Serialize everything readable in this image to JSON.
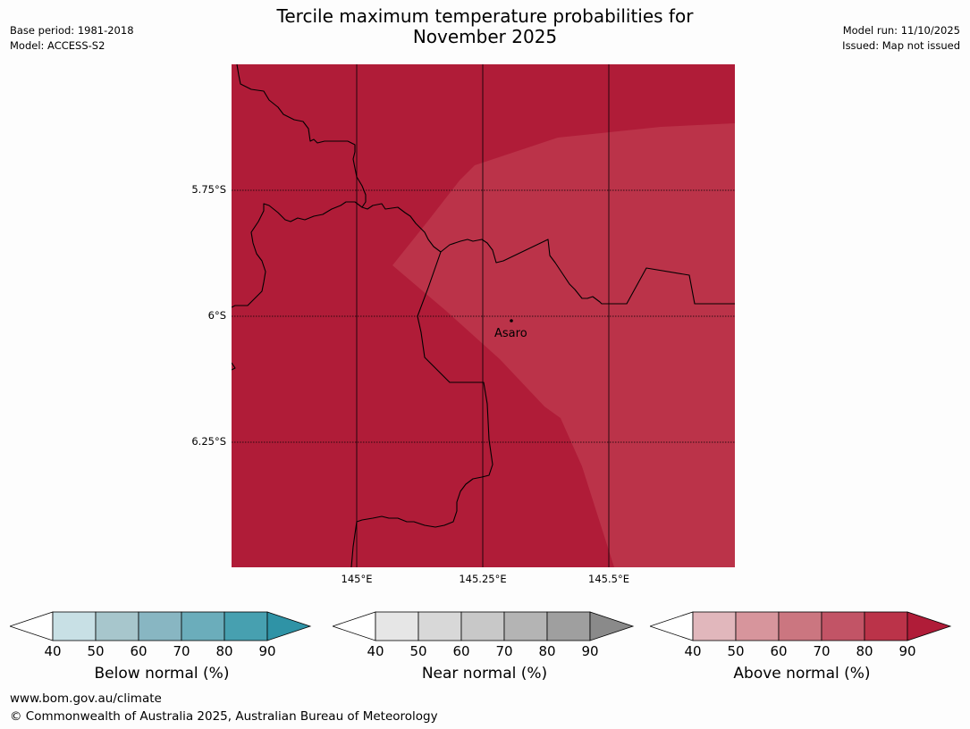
{
  "title_line1": "Tercile maximum temperature probabilities for",
  "title_line2": "November 2025",
  "meta_left": {
    "base_period": "Base period: 1981-2018",
    "model": "Model: ACCESS-S2"
  },
  "meta_right": {
    "model_run": "Model run: 11/10/2025",
    "issued": "Issued: Map not issued"
  },
  "map": {
    "latitude_labels": [
      "5.75°S",
      "6°S",
      "6.25°S"
    ],
    "longitude_labels": [
      "145°E",
      "145.25°E",
      "145.5°E"
    ],
    "place_name": "Asaro",
    "colors": {
      "strong": "#b01c38",
      "mid": "#bb3349"
    }
  },
  "colorbars": [
    {
      "title": "Below normal (%)",
      "ticks": [
        "40",
        "50",
        "60",
        "70",
        "80",
        "90"
      ],
      "colors": [
        "#ffffff",
        "#c8e0e5",
        "#a7c6cc",
        "#88b6c2",
        "#6badbb",
        "#47a0b0",
        "#2f93a6"
      ]
    },
    {
      "title": "Near normal (%)",
      "ticks": [
        "40",
        "50",
        "60",
        "70",
        "80",
        "90"
      ],
      "colors": [
        "#ffffff",
        "#e6e6e6",
        "#d8d8d8",
        "#c8c8c8",
        "#b4b4b4",
        "#9f9f9f",
        "#8a8a8a"
      ]
    },
    {
      "title": "Above normal (%)",
      "ticks": [
        "40",
        "50",
        "60",
        "70",
        "80",
        "90"
      ],
      "colors": [
        "#ffffff",
        "#e1b7bc",
        "#d7959c",
        "#cb7680",
        "#c25466",
        "#bb3349",
        "#b01c38"
      ]
    }
  ],
  "footer": {
    "url": "www.bom.gov.au/climate",
    "copyright": "© Commonwealth of Australia 2025, Australian Bureau of Meteorology"
  }
}
